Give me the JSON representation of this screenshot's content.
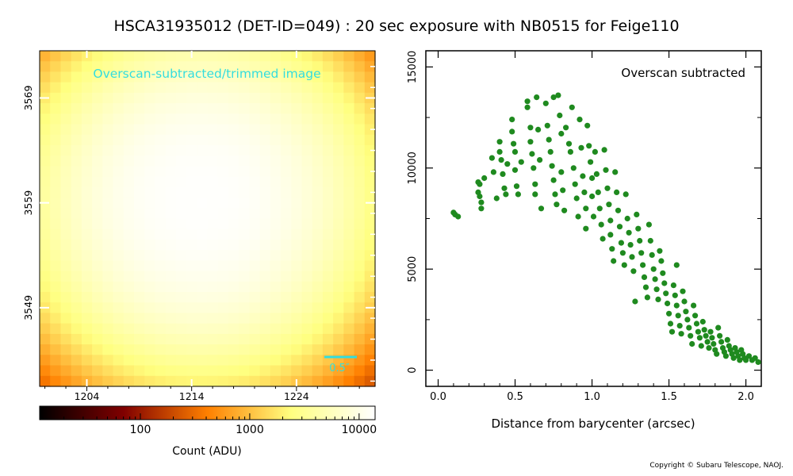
{
  "page": {
    "title": "HSCA31935012 (DET-ID=049) :  20 sec exposure with NB0515 for Feige110",
    "copyright": "Copyright © Subaru Telescope, NAOJ."
  },
  "colors": {
    "scatter_point": "#1f8a1f",
    "annotation_cyan": "#33dddd",
    "frame": "#000000"
  },
  "chart_data": [
    {
      "type": "heatmap",
      "annotation": "Overscan-subtracted/trimmed image",
      "scale_bar_label": "0.5″",
      "x_ticks": [
        1204,
        1214,
        1224
      ],
      "y_ticks": [
        3549,
        3559,
        3569
      ],
      "x_range": [
        1199.5,
        1231.5
      ],
      "y_range": [
        3541.5,
        3573.5
      ],
      "center": [
        1214.8,
        3559.2
      ],
      "sigma_pixels": 9.5,
      "peak_adu": 13500,
      "background_adu": 30,
      "colormap": "afmhot",
      "colorbar": {
        "label": "Count (ADU)",
        "scale": "log",
        "range": [
          12,
          14000
        ],
        "ticks": [
          100,
          1000,
          10000
        ],
        "tick_labels": [
          "100",
          "1000",
          "10000"
        ]
      }
    },
    {
      "type": "scatter",
      "annotation": "Overscan subtracted",
      "xlabel": "Distance from barycenter (arcsec)",
      "ylabel": "",
      "xlim": [
        -0.08,
        2.1
      ],
      "ylim": [
        -800,
        15800
      ],
      "x_ticks": [
        0.0,
        0.5,
        1.0,
        1.5,
        2.0
      ],
      "x_tick_labels": [
        "0.0",
        "0.5",
        "1.0",
        "1.5",
        "2.0"
      ],
      "y_ticks": [
        0,
        5000,
        10000,
        15000
      ],
      "y_tick_labels": [
        "0",
        "5000",
        "10000",
        "15000"
      ],
      "series": [
        {
          "points": [
            [
              0.1,
              7800
            ],
            [
              0.11,
              7700
            ],
            [
              0.13,
              7600
            ],
            [
              0.26,
              9300
            ],
            [
              0.27,
              9200
            ],
            [
              0.26,
              8800
            ],
            [
              0.28,
              8300
            ],
            [
              0.28,
              8000
            ],
            [
              0.27,
              8600
            ],
            [
              0.3,
              9500
            ],
            [
              0.35,
              10500
            ],
            [
              0.36,
              9800
            ],
            [
              0.38,
              8500
            ],
            [
              0.4,
              11300
            ],
            [
              0.4,
              10800
            ],
            [
              0.41,
              10400
            ],
            [
              0.42,
              9700
            ],
            [
              0.43,
              9000
            ],
            [
              0.44,
              8700
            ],
            [
              0.45,
              10200
            ],
            [
              0.48,
              12400
            ],
            [
              0.48,
              11800
            ],
            [
              0.49,
              11200
            ],
            [
              0.5,
              10800
            ],
            [
              0.5,
              9900
            ],
            [
              0.51,
              9100
            ],
            [
              0.52,
              8700
            ],
            [
              0.54,
              10300
            ],
            [
              0.58,
              13300
            ],
            [
              0.58,
              13000
            ],
            [
              0.6,
              12000
            ],
            [
              0.6,
              11300
            ],
            [
              0.61,
              10700
            ],
            [
              0.62,
              10000
            ],
            [
              0.63,
              9200
            ],
            [
              0.63,
              8700
            ],
            [
              0.64,
              13500
            ],
            [
              0.65,
              11900
            ],
            [
              0.66,
              10400
            ],
            [
              0.67,
              8000
            ],
            [
              0.7,
              13200
            ],
            [
              0.71,
              12100
            ],
            [
              0.72,
              11400
            ],
            [
              0.73,
              10800
            ],
            [
              0.74,
              10100
            ],
            [
              0.75,
              9400
            ],
            [
              0.76,
              8700
            ],
            [
              0.77,
              8200
            ],
            [
              0.75,
              13500
            ],
            [
              0.78,
              13600
            ],
            [
              0.79,
              12600
            ],
            [
              0.8,
              11700
            ],
            [
              0.8,
              9800
            ],
            [
              0.81,
              8900
            ],
            [
              0.82,
              7900
            ],
            [
              0.83,
              12000
            ],
            [
              0.85,
              11200
            ],
            [
              0.86,
              10800
            ],
            [
              0.87,
              13000
            ],
            [
              0.88,
              10000
            ],
            [
              0.89,
              9200
            ],
            [
              0.9,
              8500
            ],
            [
              0.91,
              7600
            ],
            [
              0.92,
              12400
            ],
            [
              0.93,
              11000
            ],
            [
              0.94,
              9600
            ],
            [
              0.95,
              8800
            ],
            [
              0.96,
              8000
            ],
            [
              0.96,
              7000
            ],
            [
              0.97,
              12100
            ],
            [
              0.98,
              11100
            ],
            [
              0.99,
              10300
            ],
            [
              1.0,
              9500
            ],
            [
              1.0,
              8600
            ],
            [
              1.01,
              7600
            ],
            [
              1.02,
              10800
            ],
            [
              1.03,
              9700
            ],
            [
              1.04,
              8800
            ],
            [
              1.05,
              8000
            ],
            [
              1.06,
              7200
            ],
            [
              1.07,
              6500
            ],
            [
              1.08,
              10900
            ],
            [
              1.09,
              9900
            ],
            [
              1.1,
              9000
            ],
            [
              1.11,
              8200
            ],
            [
              1.12,
              7400
            ],
            [
              1.12,
              6700
            ],
            [
              1.13,
              6000
            ],
            [
              1.14,
              5400
            ],
            [
              1.15,
              9800
            ],
            [
              1.16,
              8800
            ],
            [
              1.17,
              7900
            ],
            [
              1.18,
              7100
            ],
            [
              1.19,
              6300
            ],
            [
              1.2,
              5800
            ],
            [
              1.21,
              5200
            ],
            [
              1.22,
              8700
            ],
            [
              1.23,
              7500
            ],
            [
              1.24,
              6800
            ],
            [
              1.25,
              6200
            ],
            [
              1.26,
              5600
            ],
            [
              1.27,
              4900
            ],
            [
              1.28,
              3400
            ],
            [
              1.29,
              7700
            ],
            [
              1.3,
              7000
            ],
            [
              1.31,
              6400
            ],
            [
              1.32,
              5800
            ],
            [
              1.33,
              5200
            ],
            [
              1.34,
              4600
            ],
            [
              1.35,
              4100
            ],
            [
              1.36,
              3600
            ],
            [
              1.37,
              7200
            ],
            [
              1.38,
              6400
            ],
            [
              1.39,
              5700
            ],
            [
              1.4,
              5000
            ],
            [
              1.41,
              4500
            ],
            [
              1.42,
              4000
            ],
            [
              1.43,
              3500
            ],
            [
              1.44,
              5900
            ],
            [
              1.45,
              5400
            ],
            [
              1.46,
              4800
            ],
            [
              1.47,
              4300
            ],
            [
              1.48,
              3800
            ],
            [
              1.49,
              3300
            ],
            [
              1.5,
              2800
            ],
            [
              1.51,
              2300
            ],
            [
              1.52,
              1900
            ],
            [
              1.53,
              4200
            ],
            [
              1.54,
              3700
            ],
            [
              1.55,
              3200
            ],
            [
              1.56,
              2700
            ],
            [
              1.57,
              2200
            ],
            [
              1.58,
              1800
            ],
            [
              1.59,
              3900
            ],
            [
              1.6,
              3400
            ],
            [
              1.61,
              2900
            ],
            [
              1.62,
              2500
            ],
            [
              1.63,
              2100
            ],
            [
              1.64,
              1700
            ],
            [
              1.65,
              1300
            ],
            [
              1.66,
              3200
            ],
            [
              1.67,
              2700
            ],
            [
              1.68,
              2300
            ],
            [
              1.69,
              1900
            ],
            [
              1.7,
              1600
            ],
            [
              1.71,
              1200
            ],
            [
              1.72,
              2400
            ],
            [
              1.73,
              2000
            ],
            [
              1.74,
              1700
            ],
            [
              1.75,
              1400
            ],
            [
              1.76,
              1100
            ],
            [
              1.77,
              1900
            ],
            [
              1.78,
              1600
            ],
            [
              1.79,
              1300
            ],
            [
              1.8,
              1000
            ],
            [
              1.81,
              800
            ],
            [
              1.82,
              2100
            ],
            [
              1.83,
              1700
            ],
            [
              1.84,
              1400
            ],
            [
              1.85,
              1100
            ],
            [
              1.86,
              900
            ],
            [
              1.87,
              700
            ],
            [
              1.88,
              1500
            ],
            [
              1.89,
              1200
            ],
            [
              1.9,
              1000
            ],
            [
              1.91,
              800
            ],
            [
              1.92,
              600
            ],
            [
              1.93,
              1100
            ],
            [
              1.94,
              900
            ],
            [
              1.95,
              700
            ],
            [
              1.96,
              500
            ],
            [
              1.97,
              1000
            ],
            [
              1.98,
              800
            ],
            [
              1.99,
              600
            ],
            [
              2.0,
              500
            ],
            [
              2.02,
              700
            ],
            [
              2.04,
              500
            ],
            [
              2.06,
              600
            ],
            [
              2.08,
              400
            ],
            [
              1.55,
              5200
            ]
          ]
        }
      ]
    }
  ]
}
